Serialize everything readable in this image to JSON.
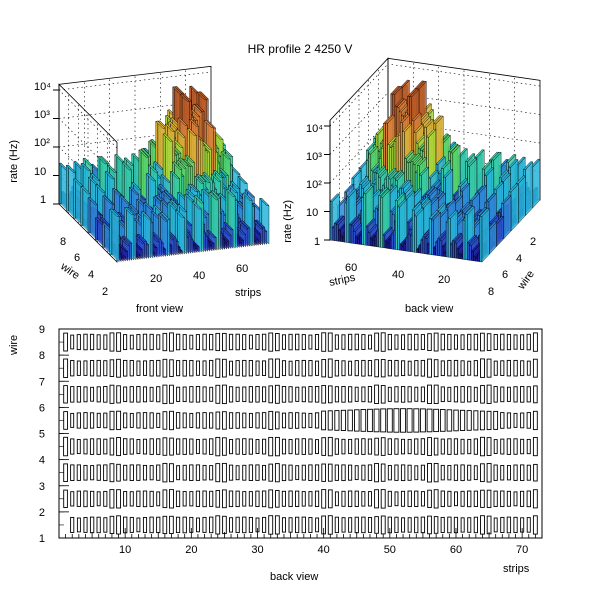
{
  "title": "HR profile 2 4250 V",
  "colors": {
    "lego_scale": [
      "#1c1c9c",
      "#2a4fc8",
      "#2f87d8",
      "#28b4d8",
      "#35c9a8",
      "#57d26a",
      "#a6d83c",
      "#d8b23a",
      "#d8803a",
      "#b85a28"
    ],
    "box_stroke": "#000000",
    "background": "#ffffff"
  },
  "chart_data": [
    {
      "type": "lego3d",
      "caption": "front view",
      "zlabel": "rate (Hz)",
      "z_scale": "log",
      "z_ticks": [
        "1",
        "10",
        "10²",
        "10³",
        "10⁴"
      ],
      "x_label": "strips",
      "x_ticks": [
        "20",
        "40",
        "60"
      ],
      "y_label": "wire",
      "y_ticks": [
        "2",
        "4",
        "6",
        "8"
      ],
      "grid": true
    },
    {
      "type": "lego3d",
      "caption": "back view",
      "zlabel": "rate (Hz)",
      "z_scale": "log",
      "z_ticks": [
        "1",
        "10",
        "10²",
        "10³",
        "10⁴"
      ],
      "x_label": "strips",
      "x_ticks": [
        "60",
        "40",
        "20"
      ],
      "y_label": "wire",
      "y_ticks": [
        "2",
        "4",
        "6",
        "8"
      ],
      "grid": true
    },
    {
      "type": "box2d",
      "caption": "back view",
      "xlabel": "strips",
      "ylabel": "wire",
      "xlim": [
        0,
        73
      ],
      "ylim": [
        1,
        9
      ],
      "x_ticks": [
        10,
        20,
        30,
        40,
        50,
        60,
        70
      ],
      "y_ticks": [
        1,
        2,
        3,
        4,
        5,
        6,
        7,
        8,
        9
      ],
      "rows_populated": [
        1,
        2,
        3,
        4,
        5,
        6,
        7,
        8
      ],
      "peak_row": 5,
      "peak_strip_range": [
        40,
        66
      ]
    }
  ]
}
